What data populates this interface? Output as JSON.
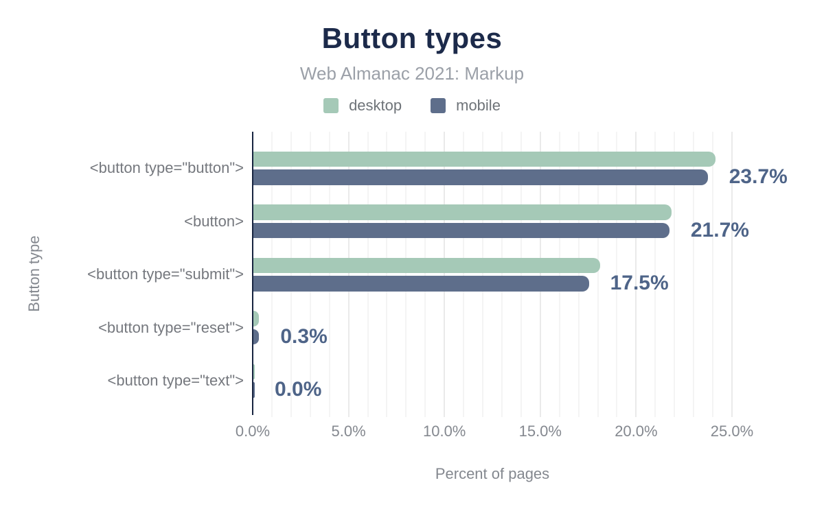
{
  "title": "Button types",
  "subtitle": "Web Almanac 2021: Markup",
  "legend": [
    {
      "label": "desktop",
      "color": "#a5c9b7"
    },
    {
      "label": "mobile",
      "color": "#5e6e8b"
    }
  ],
  "chart_data": {
    "type": "bar",
    "orientation": "horizontal",
    "title": "Button types",
    "subtitle": "Web Almanac 2021: Markup",
    "xlabel": "Percent of pages",
    "ylabel": "Button type",
    "categories": [
      "<button type=\"button\">",
      "<button>",
      "<button type=\"submit\">",
      "<button type=\"reset\">",
      "<button type=\"text\">"
    ],
    "series": [
      {
        "name": "desktop",
        "color": "#a5c9b7",
        "values": [
          24.1,
          21.8,
          18.1,
          0.3,
          0.0
        ]
      },
      {
        "name": "mobile",
        "color": "#5e6e8b",
        "values": [
          23.7,
          21.7,
          17.5,
          0.3,
          0.0
        ]
      }
    ],
    "data_labels": [
      "23.7%",
      "21.7%",
      "17.5%",
      "0.3%",
      "0.0%"
    ],
    "x_ticks": {
      "values": [
        0,
        5,
        10,
        15,
        20,
        25
      ],
      "labels": [
        "0.0%",
        "5.0%",
        "10.0%",
        "15.0%",
        "20.0%",
        "25.0%"
      ]
    },
    "xlim": [
      0,
      25
    ],
    "grid": {
      "minor_step_pct": 1,
      "major_step_pct": 5,
      "direction": "vertical"
    },
    "legend_position": "top",
    "value_labels_follow": "mobile"
  },
  "colors": {
    "background": "#ffffff",
    "title": "#1c2a4a",
    "subtitle": "#9ba0a8",
    "axis_text": "#84888f",
    "category_text": "#75787e",
    "value_label": "#4e6488",
    "desktop_bar": "#a5c9b7",
    "mobile_bar": "#5e6e8b",
    "axis_line": "#16233f",
    "grid_minor": "#f4f4f4",
    "grid_major": "#eaeaea"
  }
}
